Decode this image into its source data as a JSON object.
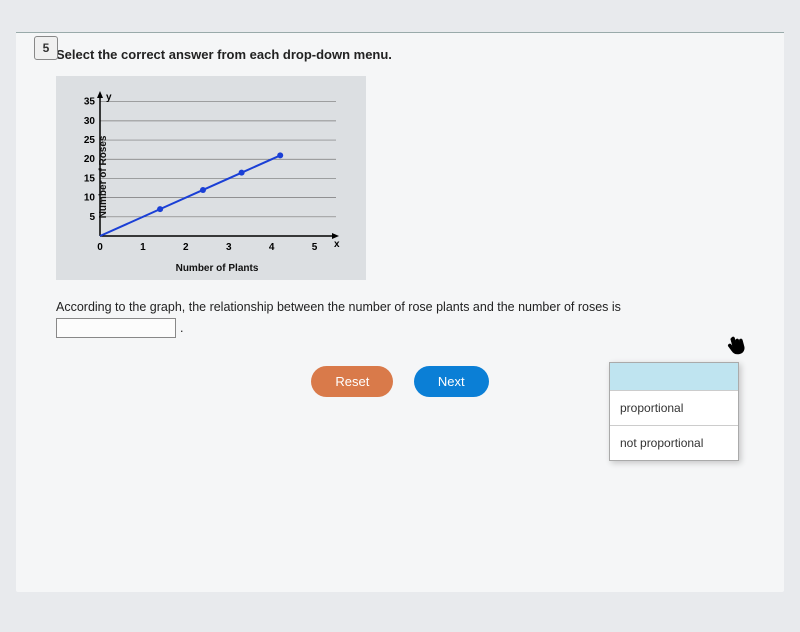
{
  "question_number": "5",
  "instruction": "Select the correct answer from each drop-down menu.",
  "chart": {
    "type": "line",
    "ylabel": "Number of Roses",
    "xlabel": "Number of Plants",
    "x_ticks": [
      0,
      1,
      2,
      3,
      4,
      5
    ],
    "y_ticks": [
      5,
      10,
      15,
      20,
      25,
      30,
      35
    ],
    "xlim": [
      0,
      5.5
    ],
    "ylim": [
      0,
      37
    ],
    "points": [
      [
        0,
        0
      ],
      [
        1.4,
        7
      ],
      [
        2.4,
        12
      ],
      [
        3.3,
        16.5
      ],
      [
        4.2,
        21
      ]
    ],
    "line_color": "#1a3fd6",
    "point_color": "#1a3fd6",
    "axis_color": "#000000",
    "grid_color": "#777777",
    "background_color": "#dcdfe2",
    "line_width": 2,
    "point_radius": 3,
    "tick_fontsize": 10
  },
  "question_text": "According to the graph, the relationship between the number of rose plants and the number of roses is",
  "dropdown": {
    "options": [
      "",
      "proportional",
      "not proportional"
    ]
  },
  "buttons": {
    "reset": "Reset",
    "next": "Next"
  },
  "colors": {
    "reset_btn": "#d97a4a",
    "next_btn": "#0b7fd6"
  }
}
